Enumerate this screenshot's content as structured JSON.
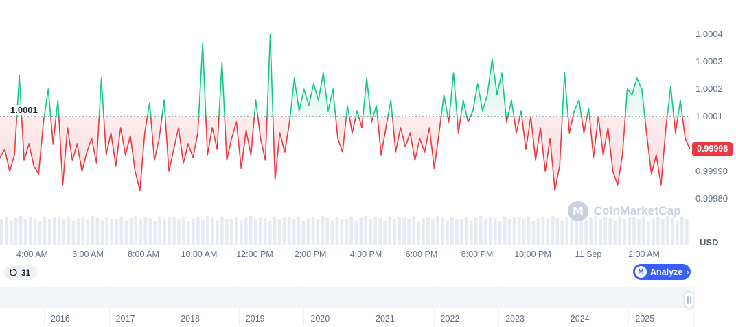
{
  "chart_data": {
    "type": "line",
    "baseline": {
      "value": 1.0001,
      "label": "1.0001"
    },
    "current_price": {
      "value": 0.99998,
      "label": "0.99998"
    },
    "unit": "USD",
    "ylim": [
      0.99978,
      1.00045
    ],
    "grid": "baseline-dotted-only",
    "legend": "none",
    "y_ticks": [
      "1.0004",
      "1.0003",
      "1.0002",
      "1.0001",
      "0.99990",
      "0.99980"
    ],
    "x_labels": [
      "4:00 AM",
      "6:00 AM",
      "8:00 AM",
      "10:00 AM",
      "12:00 PM",
      "2:00 PM",
      "4:00 PM",
      "6:00 PM",
      "8:00 PM",
      "10:00 PM",
      "11 Sep",
      "2:00 AM"
    ],
    "values": [
      0.99995,
      0.99998,
      0.9999,
      0.99996,
      1.00025,
      0.99994,
      1.0,
      0.99992,
      0.99989,
      1.00008,
      1.0002,
      1.0,
      1.00016,
      0.99985,
      1.00006,
      0.99994,
      1.0,
      0.9999,
      0.99997,
      1.00002,
      0.99993,
      1.00024,
      0.99996,
      1.00004,
      0.99992,
      1.00006,
      0.99996,
      1.00003,
      0.9999,
      0.99983,
      1.00004,
      1.00015,
      0.99994,
      1.00002,
      1.00016,
      0.9999,
      0.99998,
      1.00006,
      0.99993,
      1.0,
      0.99995,
      1.00004,
      1.00037,
      0.99996,
      1.00006,
      0.99998,
      1.0003,
      0.99994,
      1.00002,
      1.00008,
      0.99991,
      1.00005,
      0.99996,
      1.00016,
      1.00002,
      0.99994,
      1.0004,
      0.99987,
      1.00004,
      0.99997,
      1.00008,
      1.00024,
      1.00012,
      1.0002,
      1.00014,
      1.00022,
      1.00016,
      1.00026,
      1.00012,
      1.0002,
      1.00002,
      0.99997,
      1.00014,
      1.00004,
      1.00012,
      1.00006,
      1.00024,
      1.00008,
      1.00014,
      0.99996,
      1.00006,
      1.00016,
      0.99997,
      1.00006,
      0.99999,
      1.00004,
      0.99994,
      1.00002,
      0.99997,
      1.00006,
      0.99991,
      1.00004,
      1.00018,
      1.00008,
      1.00026,
      1.00004,
      1.00016,
      1.00008,
      1.00012,
      1.00022,
      1.00012,
      1.00018,
      1.00031,
      1.00018,
      1.00026,
      1.00008,
      1.00016,
      1.00004,
      1.00012,
      0.99998,
      1.0001,
      0.99994,
      1.00006,
      0.9999,
      1.00002,
      0.99983,
      0.99992,
      1.00026,
      1.00004,
      1.00012,
      1.00016,
      1.00004,
      1.00013,
      0.99995,
      1.0001,
      0.99996,
      1.00006,
      0.9999,
      0.99985,
      0.99996,
      1.0002,
      1.00018,
      1.00024,
      1.0002,
      1.00004,
      0.99989,
      0.99996,
      0.99985,
      1.00006,
      1.00021,
      1.00004,
      1.00016,
      1.00002,
      0.99998
    ],
    "volumes": [
      0.84,
      0.92,
      0.78,
      0.88,
      0.95,
      0.81,
      0.9,
      0.86,
      0.76,
      0.93,
      0.83,
      0.89,
      0.89,
      0.83,
      0.93,
      0.76,
      0.86,
      0.9,
      0.81,
      0.95,
      0.88,
      0.78,
      0.92,
      0.84,
      0.84,
      0.92,
      0.78,
      0.88,
      0.95,
      0.81,
      0.9,
      0.86,
      0.76,
      0.93,
      0.83,
      0.89,
      0.89,
      0.83,
      0.93,
      0.76,
      0.86,
      0.9,
      0.81,
      0.95,
      0.88,
      0.78,
      0.92,
      0.84,
      0.84,
      0.92,
      0.78,
      0.88,
      0.95,
      0.81,
      0.9,
      0.86,
      0.76,
      0.93,
      0.83,
      0.89,
      0.89,
      0.83,
      0.93,
      0.76,
      0.86,
      0.9,
      0.81,
      0.95,
      0.88,
      0.78,
      0.92,
      0.84,
      0.84,
      0.92,
      0.78,
      0.88,
      0.95,
      0.81,
      0.9,
      0.86,
      0.76,
      0.93,
      0.83,
      0.89,
      0.89,
      0.83,
      0.93,
      0.76,
      0.86,
      0.9,
      0.81,
      0.95,
      0.88,
      0.78,
      0.92,
      0.84,
      0.84,
      0.92,
      0.78,
      0.88,
      0.95,
      0.81,
      0.9,
      0.86,
      0.76,
      0.93,
      0.83,
      0.89,
      0.89,
      0.83,
      0.93,
      0.76,
      0.86,
      0.9,
      0.81,
      0.95,
      0.88,
      0.78,
      0.92,
      0.84,
      0.84,
      0.92,
      0.78,
      0.88,
      0.95,
      0.81,
      0.9,
      0.86,
      0.76,
      0.93,
      0.83,
      0.89,
      0.89,
      0.83,
      0.93,
      0.76,
      0.86,
      0.9,
      0.81,
      0.95,
      0.88,
      0.78,
      0.92,
      0.84
    ],
    "colors": {
      "up": "#16c784",
      "down": "#ea3943",
      "volume": "#e7eaf0",
      "baseline": "#4a5568"
    }
  },
  "toolbar": {
    "history_count": "31",
    "analyze_label": "Analyze",
    "analyze_chevron": "›"
  },
  "watermark": {
    "text": "CoinMarketCap",
    "logo": "coinmarketcap-logo"
  },
  "timeline": {
    "years": [
      "2016",
      "2017",
      "2018",
      "2019",
      "2020",
      "2021",
      "2022",
      "2023",
      "2024",
      "2025"
    ]
  }
}
